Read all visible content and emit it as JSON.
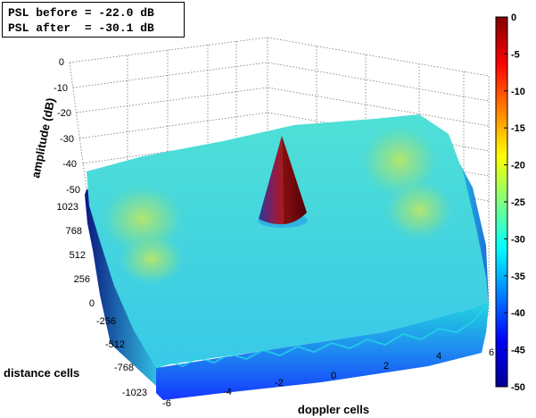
{
  "annotation": {
    "line1": "PSL before = -22.0 dB",
    "line2": "PSL after  = -30.1 dB"
  },
  "chart_data": {
    "type": "surface",
    "title": "",
    "xlabel": "doppler cells",
    "ylabel": "distance cells",
    "zlabel": "amplitude (dB)",
    "x_ticks": [
      "-6",
      "-4",
      "-2",
      "0",
      "2",
      "4",
      "6"
    ],
    "y_ticks": [
      "-1023",
      "-768",
      "-512",
      "-256",
      "0",
      "256",
      "512",
      "768",
      "1023"
    ],
    "z_ticks": [
      "0",
      "-10",
      "-20",
      "-30",
      "-40",
      "-50"
    ],
    "xlim": [
      -6,
      6
    ],
    "ylim": [
      -1023,
      1023
    ],
    "zlim": [
      -50,
      0
    ],
    "colorbar": {
      "ticks": [
        "0",
        "-5",
        "-10",
        "-15",
        "-20",
        "-25",
        "-30",
        "-35",
        "-40",
        "-45",
        "-50"
      ],
      "range": [
        -50,
        0
      ],
      "colormap": "jet"
    },
    "peak": {
      "doppler": 0,
      "distance": 0,
      "amplitude_db": 0
    },
    "floor_db": -30,
    "sidelobe_ridges": [
      {
        "doppler": -4,
        "amplitude_db": -28
      },
      {
        "doppler": 4,
        "amplitude_db": -28
      }
    ],
    "psl_before_db": -22.0,
    "psl_after_db": -30.1,
    "grid": true
  }
}
